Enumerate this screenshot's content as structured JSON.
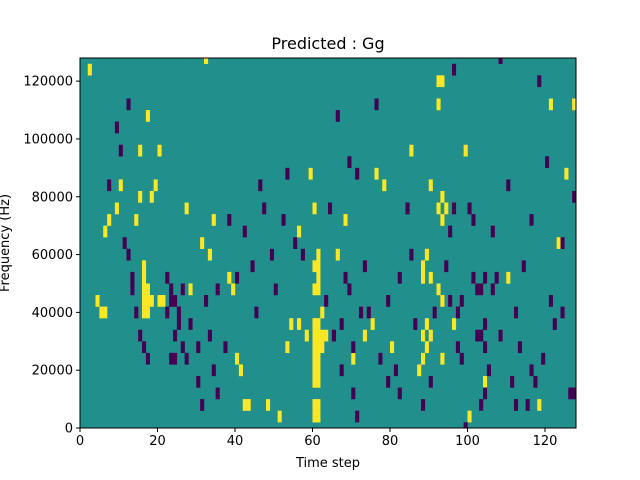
{
  "chart_data": {
    "type": "heatmap",
    "title": "Predicted : Gg",
    "xlabel": "Time step",
    "ylabel": "Frequency (Hz)",
    "xlim": [
      0,
      128
    ],
    "ylim": [
      0,
      128000
    ],
    "xticks": [
      0,
      20,
      40,
      60,
      80,
      100,
      120
    ],
    "xtick_labels": [
      "0",
      "20",
      "40",
      "60",
      "80",
      "100",
      "120"
    ],
    "yticks": [
      0,
      20000,
      40000,
      60000,
      80000,
      100000,
      120000
    ],
    "ytick_labels": [
      "0",
      "20000",
      "40000",
      "60000",
      "80000",
      "100000",
      "120000"
    ],
    "colormap": "viridis",
    "colors": {
      "background": "#21908d",
      "high": "#fde725",
      "low": "#440154",
      "axis": "#000000"
    },
    "cell_height_hz": 4000,
    "background_value": 0,
    "cells_high": [
      [
        60,
        4000
      ],
      [
        60,
        8000
      ],
      [
        61,
        4000
      ],
      [
        61,
        8000
      ],
      [
        60,
        16000
      ],
      [
        60,
        20000
      ],
      [
        61,
        16000
      ],
      [
        61,
        20000
      ],
      [
        60,
        24000
      ],
      [
        60,
        28000
      ],
      [
        61,
        24000
      ],
      [
        61,
        28000
      ],
      [
        62,
        28000
      ],
      [
        60,
        32000
      ],
      [
        61,
        32000
      ],
      [
        62,
        32000
      ],
      [
        60,
        36000
      ],
      [
        61,
        36000
      ],
      [
        60,
        48000
      ],
      [
        61,
        48000
      ],
      [
        61,
        52000
      ],
      [
        60,
        56000
      ],
      [
        61,
        56000
      ],
      [
        61,
        60000
      ],
      [
        60,
        76000
      ],
      [
        63,
        32000
      ],
      [
        56,
        36000
      ],
      [
        62,
        40000
      ],
      [
        16,
        40000
      ],
      [
        16,
        44000
      ],
      [
        17,
        44000
      ],
      [
        17,
        40000
      ],
      [
        16,
        48000
      ],
      [
        17,
        48000
      ],
      [
        16,
        52000
      ],
      [
        16,
        56000
      ],
      [
        18,
        44000
      ],
      [
        20,
        44000
      ],
      [
        21,
        44000
      ],
      [
        88,
        24000
      ],
      [
        89,
        28000
      ],
      [
        88,
        32000
      ],
      [
        90,
        32000
      ],
      [
        89,
        36000
      ],
      [
        88,
        52000
      ],
      [
        88,
        56000
      ],
      [
        90,
        52000
      ],
      [
        89,
        60000
      ],
      [
        92,
        48000
      ],
      [
        93,
        44000
      ],
      [
        92,
        76000
      ],
      [
        93,
        72000
      ],
      [
        93,
        80000
      ],
      [
        90,
        84000
      ],
      [
        94,
        76000
      ],
      [
        92,
        112000
      ],
      [
        92,
        120000
      ],
      [
        93,
        120000
      ],
      [
        2,
        124000
      ],
      [
        4,
        44000
      ],
      [
        5,
        40000
      ],
      [
        6,
        40000
      ],
      [
        6,
        68000
      ],
      [
        7,
        72000
      ],
      [
        9,
        76000
      ],
      [
        10,
        84000
      ],
      [
        15,
        80000
      ],
      [
        14,
        72000
      ],
      [
        15,
        96000
      ],
      [
        17,
        108000
      ],
      [
        18,
        80000
      ],
      [
        19,
        84000
      ],
      [
        20,
        96000
      ],
      [
        27,
        76000
      ],
      [
        28,
        48000
      ],
      [
        31,
        64000
      ],
      [
        32,
        128000
      ],
      [
        33,
        60000
      ],
      [
        34,
        72000
      ],
      [
        38,
        52000
      ],
      [
        39,
        48000
      ],
      [
        40,
        24000
      ],
      [
        41,
        20000
      ],
      [
        42,
        8000
      ],
      [
        43,
        8000
      ],
      [
        48,
        8000
      ],
      [
        51,
        4000
      ],
      [
        53,
        28000
      ],
      [
        54,
        36000
      ],
      [
        56,
        68000
      ],
      [
        58,
        32000
      ],
      [
        59,
        88000
      ],
      [
        66,
        60000
      ],
      [
        68,
        72000
      ],
      [
        70,
        24000
      ],
      [
        73,
        32000
      ],
      [
        75,
        36000
      ],
      [
        76,
        88000
      ],
      [
        78,
        84000
      ],
      [
        80,
        28000
      ],
      [
        85,
        96000
      ],
      [
        87,
        20000
      ],
      [
        93,
        24000
      ],
      [
        96,
        36000
      ],
      [
        99,
        96000
      ],
      [
        100,
        4000
      ],
      [
        104,
        16000
      ],
      [
        110,
        52000
      ],
      [
        118,
        8000
      ],
      [
        121,
        112000
      ],
      [
        123,
        64000
      ],
      [
        125,
        88000
      ],
      [
        127,
        112000
      ]
    ],
    "cells_low": [
      [
        22,
        40000
      ],
      [
        23,
        44000
      ],
      [
        24,
        44000
      ],
      [
        25,
        40000
      ],
      [
        23,
        48000
      ],
      [
        22,
        52000
      ],
      [
        24,
        32000
      ],
      [
        25,
        36000
      ],
      [
        26,
        28000
      ],
      [
        27,
        24000
      ],
      [
        23,
        24000
      ],
      [
        24,
        24000
      ],
      [
        13,
        48000
      ],
      [
        13,
        52000
      ],
      [
        14,
        40000
      ],
      [
        15,
        32000
      ],
      [
        16,
        28000
      ],
      [
        17,
        24000
      ],
      [
        102,
        32000
      ],
      [
        103,
        32000
      ],
      [
        104,
        28000
      ],
      [
        104,
        36000
      ],
      [
        103,
        48000
      ],
      [
        104,
        52000
      ],
      [
        105,
        20000
      ],
      [
        104,
        12000
      ],
      [
        103,
        8000
      ],
      [
        102,
        48000
      ],
      [
        101,
        52000
      ],
      [
        68,
        52000
      ],
      [
        69,
        48000
      ],
      [
        72,
        40000
      ],
      [
        74,
        40000
      ],
      [
        70,
        28000
      ],
      [
        67,
        20000
      ],
      [
        98,
        44000
      ],
      [
        97,
        40000
      ],
      [
        96,
        76000
      ],
      [
        95,
        68000
      ],
      [
        100,
        76000
      ],
      [
        101,
        72000
      ],
      [
        127,
        12000
      ],
      [
        126,
        12000
      ],
      [
        127,
        80000
      ],
      [
        124,
        64000
      ],
      [
        7,
        84000
      ],
      [
        12,
        112000
      ],
      [
        9,
        104000
      ],
      [
        10,
        96000
      ],
      [
        11,
        64000
      ],
      [
        12,
        60000
      ],
      [
        26,
        48000
      ],
      [
        28,
        36000
      ],
      [
        30,
        28000
      ],
      [
        32,
        44000
      ],
      [
        33,
        32000
      ],
      [
        34,
        20000
      ],
      [
        35,
        48000
      ],
      [
        37,
        28000
      ],
      [
        38,
        72000
      ],
      [
        40,
        52000
      ],
      [
        42,
        68000
      ],
      [
        44,
        56000
      ],
      [
        46,
        84000
      ],
      [
        47,
        76000
      ],
      [
        49,
        60000
      ],
      [
        52,
        72000
      ],
      [
        53,
        88000
      ],
      [
        57,
        60000
      ],
      [
        64,
        76000
      ],
      [
        66,
        108000
      ],
      [
        69,
        92000
      ],
      [
        71,
        88000
      ],
      [
        76,
        112000
      ],
      [
        79,
        16000
      ],
      [
        81,
        20000
      ],
      [
        82,
        52000
      ],
      [
        84,
        76000
      ],
      [
        86,
        36000
      ],
      [
        88,
        8000
      ],
      [
        90,
        16000
      ],
      [
        106,
        68000
      ],
      [
        108,
        32000
      ],
      [
        110,
        84000
      ],
      [
        112,
        8000
      ],
      [
        114,
        56000
      ],
      [
        116,
        20000
      ],
      [
        118,
        120000
      ],
      [
        120,
        92000
      ],
      [
        122,
        36000
      ],
      [
        124,
        40000
      ],
      [
        70,
        12000
      ],
      [
        71,
        4000
      ],
      [
        82,
        12000
      ],
      [
        96,
        124000
      ],
      [
        99,
        0
      ],
      [
        108,
        128000
      ],
      [
        116,
        72000
      ],
      [
        30,
        16000
      ],
      [
        31,
        8000
      ],
      [
        35,
        12000
      ],
      [
        45,
        40000
      ],
      [
        50,
        48000
      ],
      [
        55,
        64000
      ],
      [
        63,
        44000
      ],
      [
        65,
        32000
      ],
      [
        67,
        36000
      ],
      [
        73,
        56000
      ],
      [
        77,
        24000
      ],
      [
        79,
        44000
      ],
      [
        85,
        60000
      ],
      [
        91,
        40000
      ],
      [
        94,
        56000
      ],
      [
        95,
        44000
      ],
      [
        97,
        28000
      ],
      [
        98,
        24000
      ],
      [
        106,
        48000
      ],
      [
        107,
        52000
      ],
      [
        111,
        16000
      ],
      [
        112,
        40000
      ],
      [
        113,
        28000
      ],
      [
        115,
        8000
      ],
      [
        117,
        16000
      ],
      [
        119,
        24000
      ],
      [
        121,
        44000
      ]
    ]
  }
}
